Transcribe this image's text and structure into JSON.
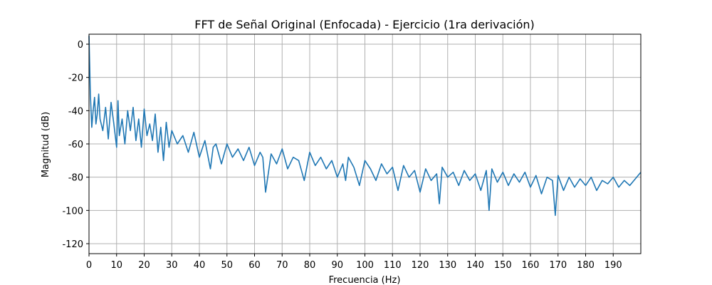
{
  "chart_data": {
    "type": "line",
    "title": "FFT de Señal Original (Enfocada) - Ejercicio (1ra derivación)",
    "xlabel": "Frecuencia (Hz)",
    "ylabel": "Magnitud (dB)",
    "xlim": [
      0,
      200
    ],
    "ylim": [
      -126,
      6
    ],
    "xticks": [
      0,
      10,
      20,
      30,
      40,
      50,
      60,
      70,
      80,
      90,
      100,
      110,
      120,
      130,
      140,
      150,
      160,
      170,
      180,
      190
    ],
    "yticks": [
      0,
      -20,
      -40,
      -60,
      -80,
      -100,
      -120
    ],
    "grid": true,
    "colors": {
      "line": "#1f77b4",
      "grid": "#b0b0b0"
    },
    "series": [
      {
        "x": [
          0,
          0.5,
          1,
          1.5,
          2,
          2.5,
          3,
          3.5,
          4,
          5,
          6,
          7,
          8,
          9,
          10,
          10.5,
          11,
          12,
          13,
          14,
          15,
          16,
          17,
          18,
          19,
          20,
          21,
          22,
          23,
          24,
          25,
          26,
          27,
          28,
          29,
          30,
          32,
          34,
          36,
          38,
          40,
          42,
          44,
          45,
          46,
          48,
          50,
          52,
          54,
          56,
          58,
          60,
          62,
          63,
          64,
          66,
          68,
          70,
          72,
          74,
          76,
          78,
          80,
          82,
          84,
          86,
          88,
          90,
          92,
          93,
          94,
          96,
          98,
          100,
          102,
          104,
          106,
          108,
          110,
          112,
          114,
          116,
          118,
          120,
          122,
          124,
          126,
          127,
          128,
          130,
          132,
          134,
          136,
          138,
          140,
          142,
          144,
          145,
          146,
          148,
          150,
          152,
          154,
          156,
          158,
          160,
          162,
          164,
          166,
          168,
          169,
          170,
          172,
          174,
          176,
          178,
          180,
          182,
          184,
          186,
          188,
          190,
          192,
          194,
          196,
          198,
          200
        ],
        "y": [
          5,
          -30,
          -50,
          -40,
          -32,
          -48,
          -42,
          -30,
          -45,
          -52,
          -38,
          -57,
          -35,
          -48,
          -62,
          -34,
          -55,
          -45,
          -60,
          -40,
          -52,
          -38,
          -58,
          -45,
          -62,
          -39,
          -55,
          -48,
          -58,
          -42,
          -65,
          -50,
          -70,
          -47,
          -62,
          -52,
          -60,
          -55,
          -65,
          -53,
          -68,
          -58,
          -75,
          -62,
          -60,
          -72,
          -60,
          -68,
          -63,
          -70,
          -62,
          -73,
          -65,
          -68,
          -89,
          -66,
          -72,
          -63,
          -75,
          -68,
          -70,
          -82,
          -65,
          -73,
          -68,
          -75,
          -70,
          -80,
          -72,
          -82,
          -68,
          -74,
          -85,
          -70,
          -75,
          -82,
          -72,
          -78,
          -74,
          -88,
          -73,
          -80,
          -76,
          -89,
          -75,
          -82,
          -78,
          -96,
          -74,
          -80,
          -77,
          -85,
          -76,
          -82,
          -78,
          -88,
          -76,
          -100,
          -75,
          -83,
          -77,
          -85,
          -78,
          -83,
          -77,
          -86,
          -79,
          -90,
          -80,
          -82,
          -103,
          -79,
          -88,
          -80,
          -86,
          -81,
          -85,
          -80,
          -88,
          -82,
          -84,
          -80,
          -86,
          -82,
          -85,
          -81,
          -77
        ]
      }
    ]
  }
}
